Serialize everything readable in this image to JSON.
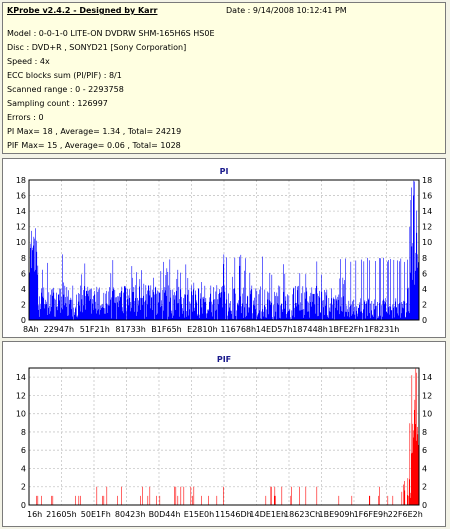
{
  "info": {
    "title": "KProbe v2.4.2 - Designed by Karr",
    "date": "Date : 9/14/2008 10:12:41 PM",
    "lines": [
      "Model : 0-0-1-0 LITE-ON DVDRW SHM-165H6S HS0E",
      "Disc : DVD+R , SONYD21 [Sony Corporation]",
      "Speed : 4x",
      "ECC blocks sum (PI/PIF) : 8/1",
      "Scanned range : 0 - 2293758",
      "Sampling count : 126997",
      "Errors : 0",
      "PI Max= 18 , Average= 1.34 , Total= 24219",
      "PIF Max= 15 , Average= 0.06 , Total= 1028"
    ]
  },
  "colors": {
    "pi_bar": "#0000ff",
    "pif_bar": "#ff0000",
    "grid": "#c8c8c8",
    "title": "#1a1a8c"
  },
  "chart_data": [
    {
      "type": "bar",
      "title": "PI",
      "ylim": [
        0,
        18
      ],
      "yticks": [
        0,
        2,
        4,
        6,
        8,
        10,
        12,
        14,
        16,
        18
      ],
      "xticks": [
        "8Ah",
        "22947h",
        "51F21h",
        "81733h",
        "B1F65h",
        "E2810h",
        "116768h",
        "14ED57h",
        "187448h",
        "1BFE2Fh",
        "1F8231h"
      ],
      "grid": true,
      "max": 18,
      "average": 1.34,
      "total": 24219
    },
    {
      "type": "bar",
      "title": "PIF",
      "ylim": [
        0,
        15
      ],
      "yticks": [
        0,
        2,
        4,
        6,
        8,
        10,
        12,
        14
      ],
      "xticks": [
        "16h",
        "21605h",
        "50E1Fh",
        "80423h",
        "B0D44h",
        "E15E0h",
        "11546Dh",
        "14DE1Eh",
        "18623Ch",
        "1BE909h",
        "1F6FE9h",
        "22F6E2h"
      ],
      "grid": true,
      "max": 15,
      "average": 0.06,
      "total": 1028
    }
  ]
}
